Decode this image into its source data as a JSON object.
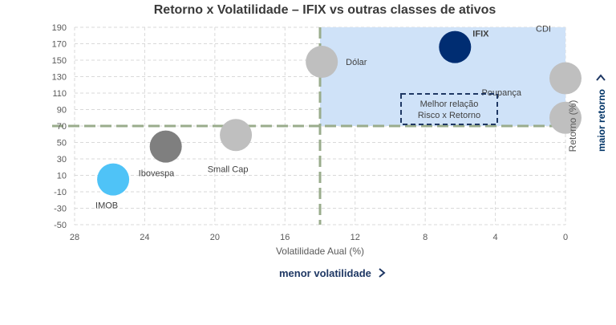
{
  "chart_data": {
    "type": "scatter",
    "title": "Retorno x Volatilidade – IFIX vs outras classes de ativos",
    "xlabel": "Volatilidade Aual (%)",
    "ylabel": "Retorno (%)",
    "xlim": [
      28,
      0
    ],
    "ylim": [
      -50,
      190
    ],
    "x_ticks": [
      "28",
      "24",
      "20",
      "16",
      "12",
      "8",
      "4",
      "0"
    ],
    "y_ticks": [
      "-50",
      "-30",
      "-10",
      "10",
      "30",
      "50",
      "70",
      "90",
      "110",
      "130",
      "150",
      "170",
      "190"
    ],
    "grid": true,
    "points": [
      {
        "label": "IFIX",
        "x": 6.3,
        "y": 166,
        "color": "#002D72"
      },
      {
        "label": "Dólar",
        "x": 13.9,
        "y": 148,
        "color": "#BFBFBF"
      },
      {
        "label": "CDI",
        "x": 0,
        "y": 128,
        "color": "#BFBFBF"
      },
      {
        "label": "Poupança",
        "x": 0,
        "y": 80,
        "color": "#BFBFBF"
      },
      {
        "label": "Small Cap",
        "x": 18.8,
        "y": 59,
        "color": "#BFBFBF"
      },
      {
        "label": "Ibovespa",
        "x": 22.8,
        "y": 45,
        "color": "#7F7F7F"
      },
      {
        "label": "IMOB",
        "x": 25.8,
        "y": 5,
        "color": "#4FC3F7"
      }
    ],
    "highlight_box_label": [
      "Melhor relação",
      "Risco x Retorno"
    ],
    "reference_lines": {
      "x": 14,
      "y": 70
    },
    "annotations": {
      "x_direction": "menor volatilidade",
      "y_direction": "maior retorno"
    }
  }
}
